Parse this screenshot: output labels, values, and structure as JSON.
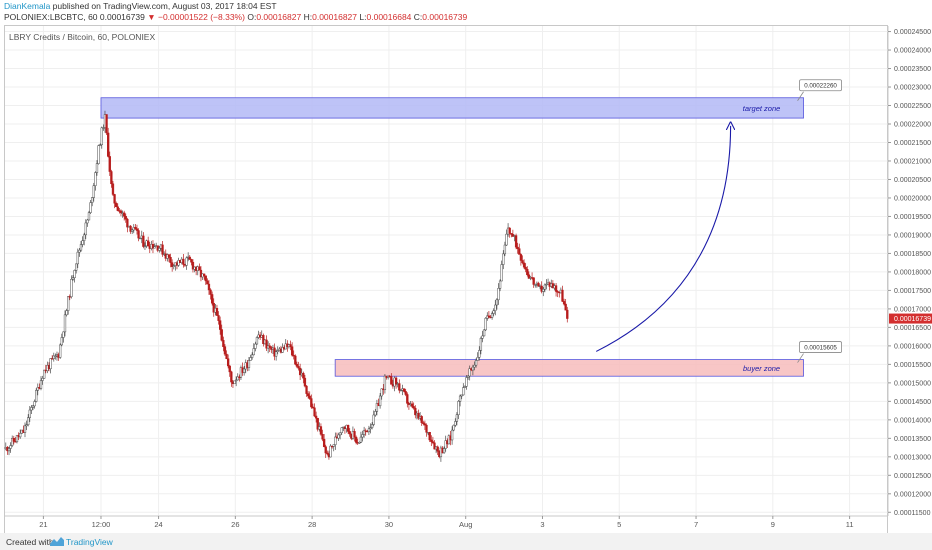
{
  "header": {
    "author": "DianKemala",
    "published_text": " published on TradingView.com, August 03, 2017 18:04 EST",
    "symbol_text": "POLONIEX:LBCBTC, 60  0.00016739",
    "change_text": "−0.00001522 (−8.33%)",
    "o_label": "O:",
    "o_value": "0.00016827",
    "h_label": "H:",
    "h_value": "0.00016827",
    "l_label": "L:",
    "l_value": "0.00016684",
    "c_label": "C:",
    "c_value": "0.00016739"
  },
  "chart_data": {
    "type": "candlestick",
    "title": "LBRY Credits / Bitcoin, 60, POLONIEX",
    "x_ticks": [
      {
        "label": "21",
        "day": 21
      },
      {
        "label": "12:00",
        "day": 22.5
      },
      {
        "label": "24",
        "day": 24
      },
      {
        "label": "26",
        "day": 26
      },
      {
        "label": "28",
        "day": 28
      },
      {
        "label": "30",
        "day": 30
      },
      {
        "label": "Aug",
        "day": 32
      },
      {
        "label": "3",
        "day": 34
      },
      {
        "label": "5",
        "day": 36
      },
      {
        "label": "7",
        "day": 38
      },
      {
        "label": "9",
        "day": 40
      },
      {
        "label": "11",
        "day": 42
      }
    ],
    "xlim": [
      20.0,
      43.0
    ],
    "ylim": [
      0.000114,
      0.0002465
    ],
    "y_ticks": [
      "0.00024500",
      "0.00024000",
      "0.00023500",
      "0.00023000",
      "0.00022500",
      "0.00022000",
      "0.00021500",
      "0.00021000",
      "0.00020500",
      "0.00020000",
      "0.00019500",
      "0.00019000",
      "0.00018500",
      "0.00018000",
      "0.00017500",
      "0.00017000",
      "0.00016500",
      "0.00016000",
      "0.00015500",
      "0.00015000",
      "0.00014500",
      "0.00014000",
      "0.00013500",
      "0.00013000",
      "0.00012500",
      "0.00012000",
      "0.00011500"
    ],
    "last_price": "0.00016739",
    "last_price_value": 0.00016739,
    "up_color": "#4a4a4a",
    "down_color": "#b71c1c",
    "price_anchors": [
      [
        20.0,
        0.000132
      ],
      [
        20.5,
        0.000137
      ],
      [
        21.0,
        0.000153
      ],
      [
        21.4,
        0.000158
      ],
      [
        21.8,
        0.000181
      ],
      [
        22.2,
        0.000196
      ],
      [
        22.45,
        0.000214
      ],
      [
        22.6,
        0.000222
      ],
      [
        22.8,
        0.0002
      ],
      [
        23.2,
        0.000193
      ],
      [
        23.6,
        0.000188
      ],
      [
        24.0,
        0.000187
      ],
      [
        24.4,
        0.000182
      ],
      [
        24.8,
        0.000183
      ],
      [
        25.2,
        0.000178
      ],
      [
        25.6,
        0.000165
      ],
      [
        25.9,
        0.00015
      ],
      [
        26.3,
        0.000155
      ],
      [
        26.6,
        0.000163
      ],
      [
        27.0,
        0.000158
      ],
      [
        27.4,
        0.00016
      ],
      [
        27.8,
        0.00015
      ],
      [
        28.1,
        0.00014
      ],
      [
        28.4,
        0.00013
      ],
      [
        28.8,
        0.000139
      ],
      [
        29.2,
        0.000134
      ],
      [
        29.6,
        0.00014
      ],
      [
        29.9,
        0.000151
      ],
      [
        30.2,
        0.00015
      ],
      [
        30.6,
        0.000143
      ],
      [
        31.0,
        0.000137
      ],
      [
        31.3,
        0.000131
      ],
      [
        31.6,
        0.000135
      ],
      [
        31.9,
        0.000148
      ],
      [
        32.3,
        0.000157
      ],
      [
        32.5,
        0.000166
      ],
      [
        32.8,
        0.000172
      ],
      [
        33.1,
        0.000192
      ],
      [
        33.3,
        0.000188
      ],
      [
        33.6,
        0.00018
      ],
      [
        33.9,
        0.000175
      ],
      [
        34.2,
        0.000177
      ],
      [
        34.5,
        0.000174
      ],
      [
        34.65,
        0.000167
      ]
    ],
    "zones": [
      {
        "name": "target zone",
        "value_label": "0.00022260",
        "start_day": 22.5,
        "end_day": 40.8,
        "y_low": 0.0002216,
        "y_high": 0.0002271,
        "fill": "#b3b8f6",
        "stroke": "#5555dd"
      },
      {
        "name": "buyer zone",
        "value_label": "0.00015605",
        "start_day": 28.6,
        "end_day": 40.8,
        "y_low": 0.0001518,
        "y_high": 0.0001563,
        "fill": "#f7bcbc",
        "stroke": "#5555dd"
      }
    ],
    "arrow_color": "#1a1aa8"
  },
  "footer": {
    "created_with": "Created with",
    "tradingview": "TradingView"
  }
}
